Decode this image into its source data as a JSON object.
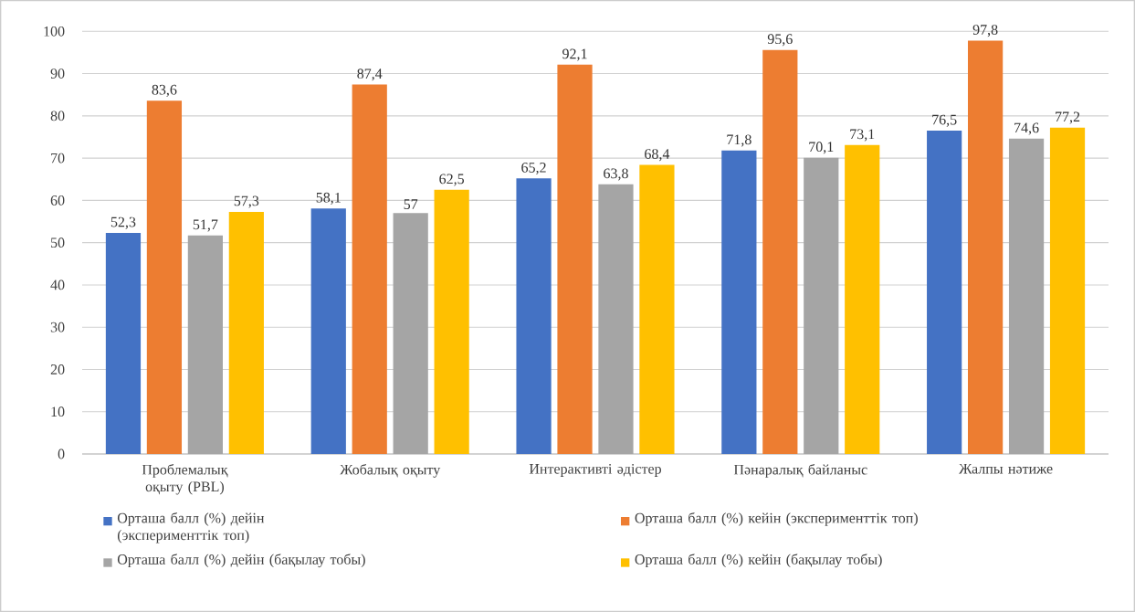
{
  "chart_data": {
    "type": "bar",
    "categories": [
      "Проблемалық оқыту (PBL)",
      "Жобалық оқыту",
      "Интерактивті әдістер",
      "Пәнаралық байланыс",
      "Жалпы нәтиже"
    ],
    "series": [
      {
        "name": "Орташа балл (%) дейін (эксперименттік топ)",
        "color": "#4472c4",
        "values": [
          52.3,
          58.1,
          65.2,
          71.8,
          76.5
        ],
        "value_labels": [
          "52,3",
          "58,1",
          "65,2",
          "71,8",
          "76,5"
        ]
      },
      {
        "name": "Орташа балл (%) кейін (эксперименттік топ)",
        "color": "#ed7d31",
        "values": [
          83.6,
          87.4,
          92.1,
          95.6,
          97.8
        ],
        "value_labels": [
          "83,6",
          "87,4",
          "92,1",
          "95,6",
          "97,8"
        ]
      },
      {
        "name": "Орташа балл (%) дейін (бақылау тобы)",
        "color": "#a5a5a5",
        "values": [
          51.7,
          57,
          63.8,
          70.1,
          74.6
        ],
        "value_labels": [
          "51,7",
          "57",
          "63,8",
          "70,1",
          "74,6"
        ]
      },
      {
        "name": "Орташа балл (%) кейін (бақылау тобы)",
        "color": "#ffc000",
        "values": [
          57.3,
          62.5,
          68.4,
          73.1,
          77.2
        ],
        "value_labels": [
          "57,3",
          "62,5",
          "68,4",
          "73,1",
          "77,2"
        ]
      }
    ],
    "ylim": [
      0,
      100
    ],
    "yticks": [
      0,
      10,
      20,
      30,
      40,
      50,
      60,
      70,
      80,
      90,
      100
    ],
    "grid": "y",
    "legend": "bottom"
  }
}
